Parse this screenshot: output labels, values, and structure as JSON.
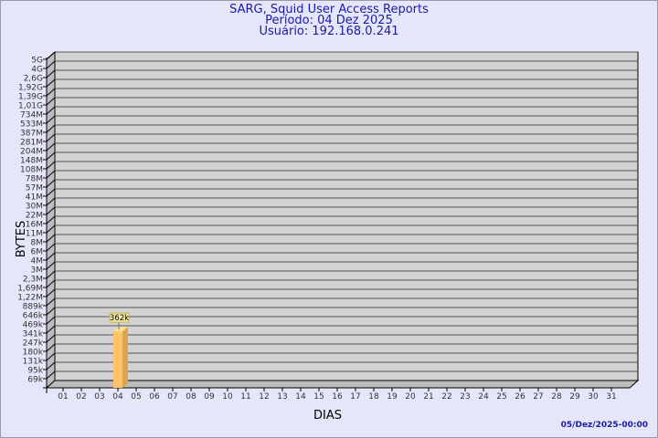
{
  "chart_data": {
    "type": "bar",
    "title": "SARG, Squid User Access Reports",
    "subtitle_period": "Período: 04 Dez 2025",
    "subtitle_user": "Usuário: 192.168.0.241",
    "xlabel": "DIAS",
    "ylabel": "BYTES",
    "y_scale": "log",
    "y_ticks": [
      "5G",
      "4G",
      "2,6G",
      "1,92G",
      "1,39G",
      "1,01G",
      "734M",
      "533M",
      "387M",
      "281M",
      "204M",
      "148M",
      "108M",
      "78M",
      "57M",
      "41M",
      "30M",
      "22M",
      "16M",
      "11M",
      "8M",
      "6M",
      "4M",
      "3M",
      "2,3M",
      "1,69M",
      "1,22M",
      "889k",
      "646k",
      "469k",
      "341k",
      "247k",
      "180k",
      "131k",
      "95k",
      "69k"
    ],
    "categories": [
      "01",
      "02",
      "03",
      "04",
      "05",
      "06",
      "07",
      "08",
      "09",
      "10",
      "11",
      "12",
      "13",
      "14",
      "15",
      "16",
      "17",
      "18",
      "19",
      "20",
      "21",
      "22",
      "23",
      "24",
      "25",
      "26",
      "27",
      "28",
      "29",
      "30",
      "31"
    ],
    "values_bytes": [
      0,
      0,
      0,
      362000,
      0,
      0,
      0,
      0,
      0,
      0,
      0,
      0,
      0,
      0,
      0,
      0,
      0,
      0,
      0,
      0,
      0,
      0,
      0,
      0,
      0,
      0,
      0,
      0,
      0,
      0,
      0
    ],
    "data_labels": {
      "04": "362k"
    },
    "grid": true,
    "colors": {
      "background": "#e6e6fa",
      "plot": "#d3d3d3",
      "wall": "#bdbdbd",
      "bar_front": "#ffc46b",
      "bar_side": "#dca54e",
      "bar_top": "#ffe08f",
      "title": "#1a1aa6"
    }
  },
  "footer_timestamp": "05/Dez/2025-00:00"
}
